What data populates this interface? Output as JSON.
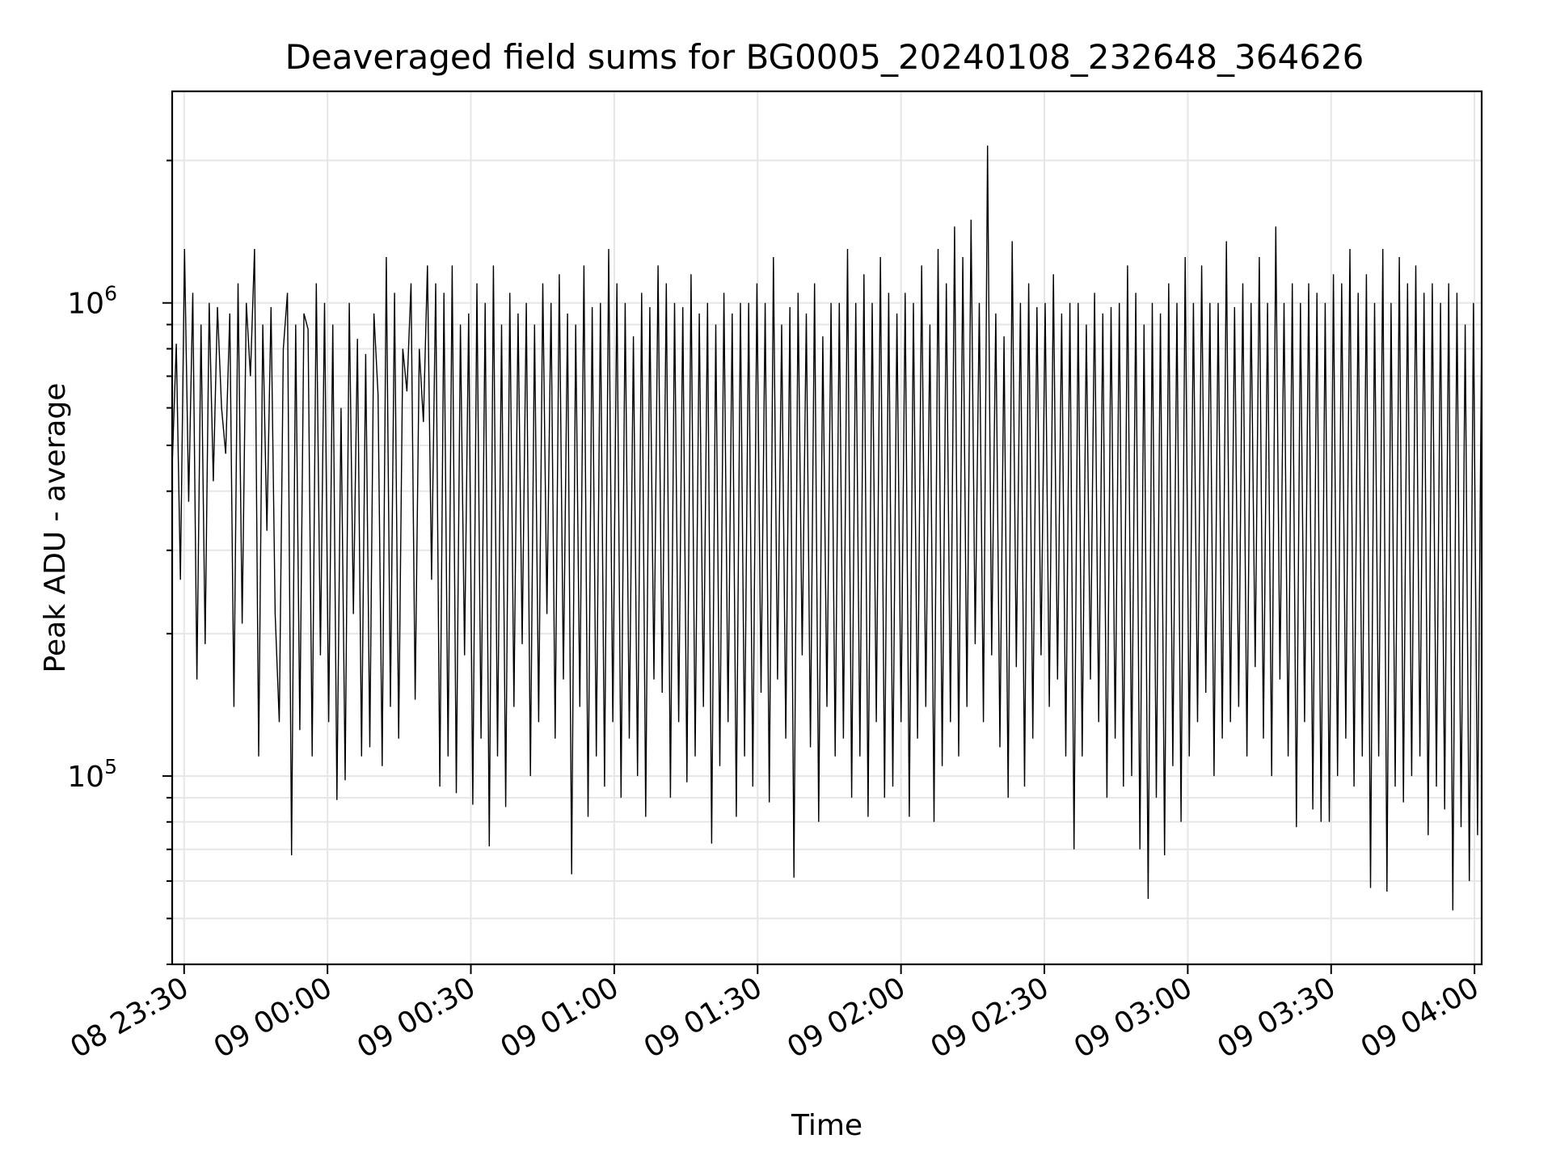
{
  "chart_data": {
    "type": "line",
    "title": "Deaveraged field sums for BG0005_20240108_232648_364626",
    "xlabel": "Time",
    "ylabel": "Peak ADU - average",
    "yscale": "log",
    "ylim": [
      40000,
      2800000
    ],
    "xlim": [
      "2024-01-08 23:27:30",
      "2024-01-09 04:01:30"
    ],
    "x_tick_labels": [
      "08 23:30",
      "09 00:00",
      "09 00:30",
      "09 01:00",
      "09 01:30",
      "09 02:00",
      "09 02:30",
      "09 03:00",
      "09 03:30",
      "09 04:00"
    ],
    "y_tick_labels": [
      {
        "base": "10",
        "exp": "5",
        "value": 100000
      },
      {
        "base": "10",
        "exp": "6",
        "value": 1000000
      }
    ],
    "grid": true,
    "line_color": "#000000",
    "series": [
      {
        "x_start": "2024-01-08 23:27:30",
        "x_end": "2024-01-09 04:01:30",
        "sample_interval_s": 8,
        "values": [
          450000,
          820000,
          260000,
          1300000,
          380000,
          1050000,
          160000,
          900000,
          190000,
          1000000,
          420000,
          980000,
          600000,
          480000,
          950000,
          140000,
          1100000,
          210000,
          1000000,
          700000,
          1300000,
          110000,
          900000,
          330000,
          980000,
          220000,
          130000,
          800000,
          1050000,
          68000,
          900000,
          125000,
          950000,
          880000,
          110000,
          1100000,
          180000,
          1000000,
          130000,
          900000,
          89000,
          600000,
          98000,
          1000000,
          220000,
          840000,
          110000,
          780000,
          115000,
          950000,
          640000,
          105000,
          1250000,
          140000,
          1050000,
          120000,
          800000,
          650000,
          1100000,
          145000,
          800000,
          560000,
          1200000,
          260000,
          1100000,
          95000,
          1050000,
          110000,
          1200000,
          92000,
          900000,
          180000,
          950000,
          87000,
          1100000,
          120000,
          1000000,
          71000,
          1200000,
          110000,
          900000,
          86000,
          1050000,
          140000,
          950000,
          190000,
          1000000,
          100000,
          900000,
          130000,
          1100000,
          220000,
          1000000,
          120000,
          1150000,
          160000,
          950000,
          62000,
          900000,
          140000,
          1200000,
          82000,
          980000,
          110000,
          1000000,
          95000,
          1300000,
          130000,
          1100000,
          90000,
          1000000,
          120000,
          850000,
          100000,
          1050000,
          82000,
          980000,
          160000,
          1200000,
          150000,
          1100000,
          90000,
          1000000,
          130000,
          980000,
          97000,
          1150000,
          110000,
          950000,
          140000,
          1000000,
          72000,
          900000,
          105000,
          1050000,
          130000,
          950000,
          82000,
          1000000,
          110000,
          1000000,
          95000,
          1100000,
          150000,
          1000000,
          88000,
          1250000,
          160000,
          900000,
          120000,
          980000,
          61000,
          1050000,
          180000,
          950000,
          115000,
          1100000,
          80000,
          850000,
          140000,
          1000000,
          110000,
          1000000,
          120000,
          1300000,
          90000,
          1000000,
          110000,
          1150000,
          82000,
          1000000,
          130000,
          1250000,
          90000,
          1050000,
          95000,
          950000,
          130000,
          1050000,
          82000,
          1000000,
          120000,
          1200000,
          140000,
          900000,
          80000,
          1300000,
          105000,
          1100000,
          130000,
          1450000,
          110000,
          1250000,
          140000,
          1500000,
          190000,
          1000000,
          130000,
          2150000,
          180000,
          950000,
          115000,
          850000,
          90000,
          1350000,
          170000,
          1000000,
          95000,
          1100000,
          120000,
          980000,
          180000,
          1000000,
          140000,
          1150000,
          160000,
          950000,
          110000,
          1000000,
          70000,
          1000000,
          110000,
          900000,
          160000,
          1050000,
          130000,
          950000,
          90000,
          980000,
          120000,
          1000000,
          95000,
          1200000,
          100000,
          1050000,
          70000,
          900000,
          55000,
          1000000,
          90000,
          950000,
          68000,
          1100000,
          105000,
          1000000,
          80000,
          1250000,
          110000,
          1000000,
          130000,
          1200000,
          150000,
          1000000,
          100000,
          1000000,
          120000,
          1350000,
          130000,
          980000,
          140000,
          1100000,
          110000,
          1000000,
          170000,
          1250000,
          120000,
          1000000,
          100000,
          1450000,
          160000,
          1000000,
          110000,
          1100000,
          78000,
          1000000,
          130000,
          1100000,
          85000,
          1050000,
          80000,
          1000000,
          80000,
          1150000,
          100000,
          1100000,
          120000,
          1300000,
          95000,
          1050000,
          110000,
          1150000,
          58000,
          1000000,
          110000,
          1300000,
          57000,
          1000000,
          95000,
          1250000,
          88000,
          1100000,
          100000,
          1200000,
          110000,
          1050000,
          75000,
          1100000,
          95000,
          1000000,
          85000,
          1100000,
          52000,
          1050000,
          78000,
          900000,
          60000,
          1000000,
          75000,
          900000
        ]
      }
    ]
  }
}
